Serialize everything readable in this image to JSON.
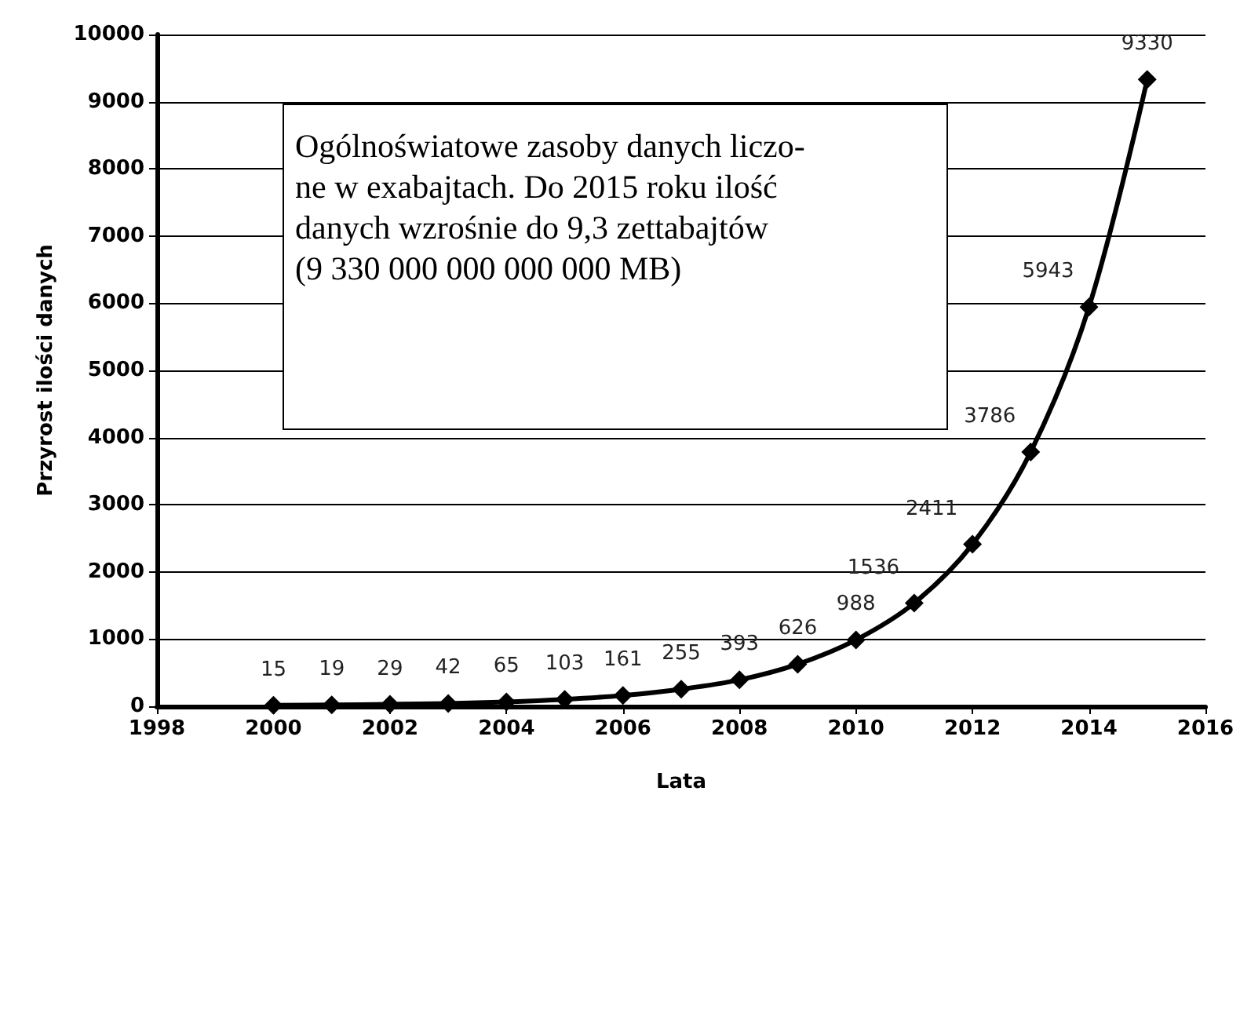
{
  "chart_data": {
    "type": "line",
    "xlabel": "Lata",
    "ylabel": "Przyrost ilości danych",
    "annotations": [
      "Ogólnoświatowe zasoby danych liczo-\nne w exabajtach. Do 2015 roku ilość\ndanych wzrośnie do 9,3 zettabajtów\n(9 330 000 000 000 000 MB)"
    ],
    "x": [
      2000,
      2001,
      2002,
      2003,
      2004,
      2005,
      2006,
      2007,
      2008,
      2009,
      2010,
      2011,
      2012,
      2013,
      2014,
      2015
    ],
    "series": [
      {
        "color": "#000000",
        "values": [
          15,
          19,
          29,
          42,
          65,
          103,
          161,
          255,
          393,
          626,
          988,
          1536,
          2411,
          3786,
          5943,
          9330
        ]
      }
    ],
    "xlim": [
      1998,
      2016
    ],
    "xticks": [
      1998,
      2000,
      2002,
      2004,
      2006,
      2008,
      2010,
      2012,
      2014,
      2016
    ],
    "ylim": [
      0,
      10000
    ],
    "yticks": [
      0,
      1000,
      2000,
      3000,
      4000,
      5000,
      6000,
      7000,
      8000,
      9000,
      10000
    ],
    "grid": "y",
    "marker": "diamond",
    "line_style": "solid",
    "data_labels": true
  }
}
